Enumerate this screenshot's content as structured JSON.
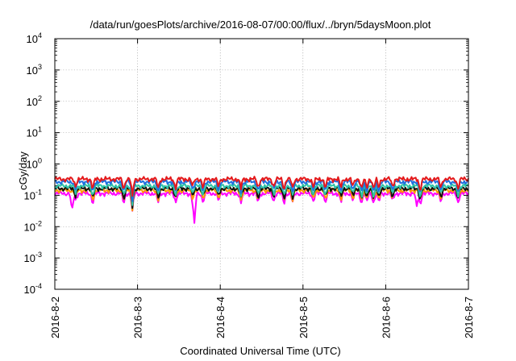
{
  "chart_data": {
    "type": "line",
    "title": "/data/run/goesPlots/archive/2016-08-07/00:00/flux/../bryn/5daysMoon.plot",
    "xlabel": "Coordinated Universal Time (UTC)",
    "ylabel": "cGy/day",
    "y_scale": "log",
    "ylim": [
      0.0001,
      10000
    ],
    "xlim": [
      "2016-08-02",
      "2016-08-07"
    ],
    "grid": true,
    "x_ticks": [
      "2016-8-2",
      "2016-8-3",
      "2016-8-4",
      "2016-8-5",
      "2016-8-6",
      "2016-8-7"
    ],
    "y_ticks": [
      {
        "value": 0.0001,
        "base": "10",
        "exp": "-4"
      },
      {
        "value": 0.001,
        "base": "10",
        "exp": "-3"
      },
      {
        "value": 0.01,
        "base": "10",
        "exp": "-2"
      },
      {
        "value": 0.1,
        "base": "10",
        "exp": "-1"
      },
      {
        "value": 1,
        "base": "10",
        "exp": "0"
      },
      {
        "value": 10,
        "base": "10",
        "exp": "1"
      },
      {
        "value": 100,
        "base": "10",
        "exp": "2"
      },
      {
        "value": 1000,
        "base": "10",
        "exp": "3"
      },
      {
        "value": 10000,
        "base": "10",
        "exp": "4"
      }
    ],
    "series": [
      {
        "color": "#e41a1c",
        "baseline": 0.33
      },
      {
        "color": "#1f6fdf",
        "baseline": 0.27
      },
      {
        "color": "#2ec4a6",
        "baseline": 0.2
      },
      {
        "color": "#111111",
        "baseline": 0.165
      },
      {
        "color": "#ff9900",
        "baseline": 0.145
      },
      {
        "color": "#ff00ff",
        "baseline": 0.115
      }
    ],
    "dips": [
      {
        "date": "2016-08-02T06:00",
        "factor": 0.6
      },
      {
        "date": "2016-08-02T11:00",
        "factor": 0.45
      },
      {
        "date": "2016-08-02T20:00",
        "factor": 0.45
      },
      {
        "date": "2016-08-02T22:30",
        "factor": 0.25
      },
      {
        "date": "2016-08-03T06:00",
        "factor": 0.5
      },
      {
        "date": "2016-08-03T11:00",
        "factor": 0.5
      },
      {
        "date": "2016-08-03T16:00",
        "factor": 0.55
      },
      {
        "date": "2016-08-03T19:00",
        "factor": 0.5
      },
      {
        "date": "2016-08-03T23:30",
        "factor": 0.55
      },
      {
        "date": "2016-08-04T06:00",
        "factor": 0.5
      },
      {
        "date": "2016-08-04T11:00",
        "factor": 0.5
      },
      {
        "date": "2016-08-04T15:30",
        "factor": 0.55
      },
      {
        "date": "2016-08-04T18:30",
        "factor": 0.45
      },
      {
        "date": "2016-08-04T21:00",
        "factor": 0.5
      },
      {
        "date": "2016-08-05T03:00",
        "factor": 0.55
      },
      {
        "date": "2016-08-05T06:30",
        "factor": 0.5
      },
      {
        "date": "2016-08-05T11:00",
        "factor": 0.5
      },
      {
        "date": "2016-08-05T14:30",
        "factor": 0.55
      },
      {
        "date": "2016-08-05T17:00",
        "factor": 0.45
      },
      {
        "date": "2016-08-05T18:30",
        "factor": 0.5
      },
      {
        "date": "2016-08-05T20:30",
        "factor": 0.45
      },
      {
        "date": "2016-08-05T22:00",
        "factor": 0.5
      },
      {
        "date": "2016-08-06T02:00",
        "factor": 0.55
      },
      {
        "date": "2016-08-06T10:00",
        "factor": 0.4
      },
      {
        "date": "2016-08-06T16:00",
        "factor": 0.5
      },
      {
        "date": "2016-08-06T21:00",
        "factor": 0.5
      }
    ],
    "deep_dips": [
      {
        "date": "2016-08-02T05:00",
        "value": 0.033
      },
      {
        "date": "2016-08-03T16:30",
        "value": 0.013
      },
      {
        "date": "2016-08-06T09:00",
        "value": 0.045
      }
    ]
  }
}
